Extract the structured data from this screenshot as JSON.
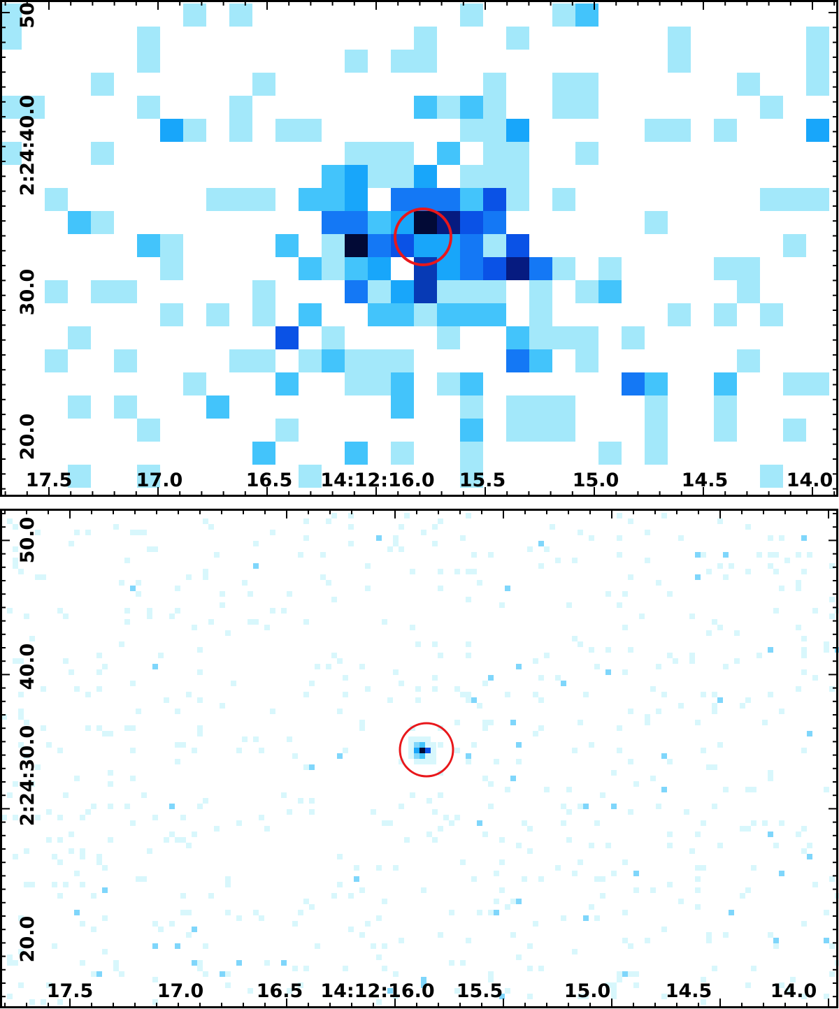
{
  "colors": {
    "background": "#ffffff",
    "low": "#a3e8fa",
    "level2": "#43c4fb",
    "level3": "#18a6fa",
    "level4": "#1478f5",
    "level5": "#0a52e6",
    "level6": "#073ab5",
    "level7": "#061b80",
    "peak": "#020a36",
    "bottom_low": "#d8f7fc",
    "bottom_mid": "#7fd6fb",
    "marker": "#e8171b",
    "frame": "#000000"
  },
  "panels": [
    {
      "id": "top",
      "x_tick_labels": [
        "17.5",
        "17.0",
        "16.5",
        "14:12:16.0",
        "15.5",
        "15.0",
        "14.5",
        "14.0"
      ],
      "y_tick_labels": [
        "50",
        "2:24:40.0",
        "30.0",
        "20.0"
      ],
      "marker": "circle"
    },
    {
      "id": "bottom",
      "x_tick_labels": [
        "17.5",
        "17.0",
        "16.5",
        "14:12:16.0",
        "15.5",
        "15.0",
        "14.5",
        "14.0"
      ],
      "y_tick_labels": [
        "50.0",
        "40.0",
        "2:24:30.0",
        "20.0"
      ],
      "marker": "circle"
    }
  ]
}
